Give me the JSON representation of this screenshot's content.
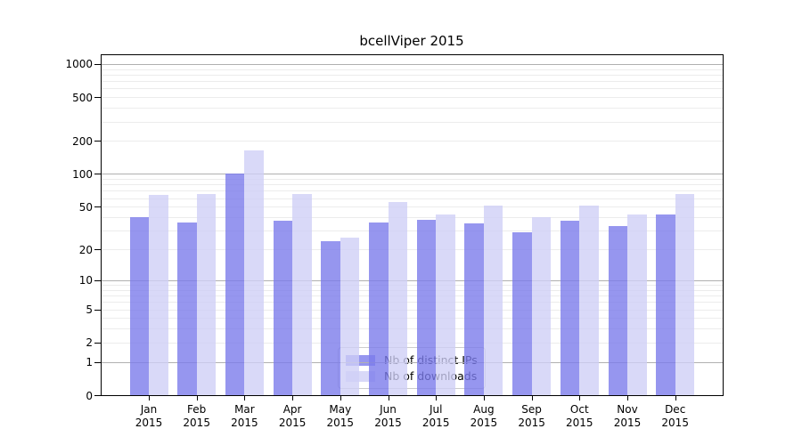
{
  "title": "bcellViper 2015",
  "colors": {
    "ips_bar": "rgba(124,124,235,0.80)",
    "downloads_bar": "rgba(206,206,246,0.78)",
    "ips_solid": "#9696ef",
    "downloads_solid": "#d9d9f8",
    "major_grid": "#b0b0b0",
    "minor_grid": "#ececec",
    "spine": "#000000"
  },
  "legend": {
    "entries": [
      {
        "label": "Nb of distinct IPs",
        "series": "ips"
      },
      {
        "label": "Nb of downloads",
        "series": "downloads"
      }
    ]
  },
  "chart_data": {
    "type": "bar",
    "title": "bcellViper 2015",
    "scale": "log10(1+v)",
    "categories": [
      "Jan",
      "Feb",
      "Mar",
      "Apr",
      "May",
      "Jun",
      "Jul",
      "Aug",
      "Sep",
      "Oct",
      "Nov",
      "Dec"
    ],
    "year_label": "2015",
    "series": [
      {
        "name": "Nb of distinct IPs",
        "values": [
          40,
          36,
          101,
          37,
          24,
          36,
          38,
          35,
          29,
          37,
          33,
          42
        ]
      },
      {
        "name": "Nb of downloads",
        "values": [
          64,
          66,
          165,
          66,
          26,
          55,
          42,
          51,
          40,
          51,
          42,
          65
        ]
      }
    ],
    "y_ticks": [
      0,
      1,
      2,
      5,
      10,
      20,
      50,
      100,
      200,
      500,
      1000
    ],
    "y_major_gridlines": [
      1,
      10,
      100,
      1000
    ],
    "y_minor_gridlines": [
      2,
      3,
      4,
      5,
      6,
      7,
      8,
      9,
      20,
      30,
      40,
      50,
      60,
      70,
      80,
      90,
      200,
      300,
      400,
      500,
      600,
      700,
      800,
      900
    ],
    "ylim": [
      0,
      1200
    ],
    "xlabel": "",
    "ylabel": "",
    "grid": true,
    "legend_position": "lower center"
  }
}
